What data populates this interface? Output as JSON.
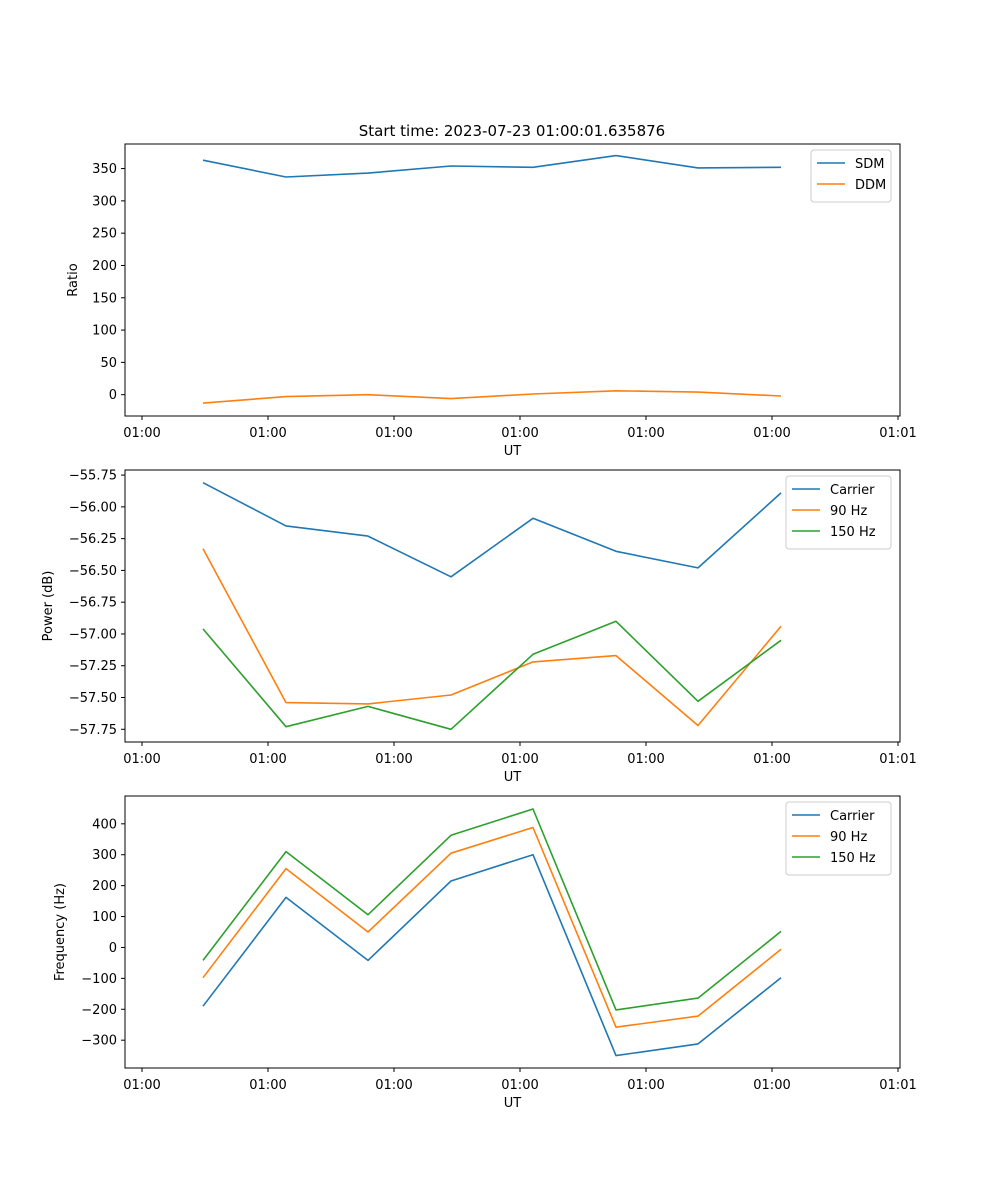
{
  "figure": {
    "title": "Start time: 2023-07-23 01:00:01.635876"
  },
  "chart_data": [
    {
      "type": "line",
      "title": "Start time: 2023-07-23 01:00:01.635876",
      "xlabel": "UT",
      "ylabel": "Ratio",
      "x_tick_labels": [
        "01:00",
        "01:00",
        "01:00",
        "01:00",
        "01:00",
        "01:00",
        "01:01"
      ],
      "y_ticks": [
        0,
        50,
        100,
        150,
        200,
        250,
        300,
        350
      ],
      "ylim": [
        -33,
        388
      ],
      "x_points": 8,
      "legend": "top-right",
      "series": [
        {
          "name": "SDM",
          "color": "#1f77b4",
          "values": [
            363,
            337,
            343,
            354,
            352,
            370,
            351,
            352
          ]
        },
        {
          "name": "DDM",
          "color": "#ff7f0e",
          "values": [
            -13,
            -3,
            0,
            -6,
            1,
            6,
            4,
            -2
          ]
        }
      ]
    },
    {
      "type": "line",
      "title": "",
      "xlabel": "UT",
      "ylabel": "Power (dB)",
      "x_tick_labels": [
        "01:00",
        "01:00",
        "01:00",
        "01:00",
        "01:00",
        "01:00",
        "01:01"
      ],
      "y_ticks": [
        -57.75,
        -57.5,
        -57.25,
        -57.0,
        -56.75,
        -56.5,
        -56.25,
        -56.0,
        -55.75
      ],
      "y_tick_labels": [
        "−57.75",
        "−57.50",
        "−57.25",
        "−57.00",
        "−56.75",
        "−56.50",
        "−56.25",
        "−56.00",
        "−55.75"
      ],
      "ylim": [
        -57.85,
        -55.71
      ],
      "x_points": 8,
      "legend": "top-right",
      "series": [
        {
          "name": "Carrier",
          "color": "#1f77b4",
          "values": [
            -55.81,
            -56.15,
            -56.23,
            -56.55,
            -56.09,
            -56.35,
            -56.48,
            -55.89
          ]
        },
        {
          "name": "90 Hz",
          "color": "#ff7f0e",
          "values": [
            -56.33,
            -57.54,
            -57.55,
            -57.48,
            -57.22,
            -57.17,
            -57.72,
            -56.94
          ]
        },
        {
          "name": "150 Hz",
          "color": "#2ca02c",
          "values": [
            -56.96,
            -57.73,
            -57.57,
            -57.75,
            -57.16,
            -56.9,
            -57.53,
            -57.05
          ]
        }
      ]
    },
    {
      "type": "line",
      "title": "",
      "xlabel": "UT",
      "ylabel": "Frequency (Hz)",
      "x_tick_labels": [
        "01:00",
        "01:00",
        "01:00",
        "01:00",
        "01:00",
        "01:00",
        "01:01"
      ],
      "y_ticks": [
        -300,
        -200,
        -100,
        0,
        100,
        200,
        300,
        400
      ],
      "y_tick_labels": [
        "−300",
        "−200",
        "−100",
        "0",
        "100",
        "200",
        "300",
        "400"
      ],
      "ylim": [
        -390,
        490
      ],
      "x_points": 8,
      "legend": "top-right",
      "series": [
        {
          "name": "Carrier",
          "color": "#1f77b4",
          "values": [
            -190,
            162,
            -42,
            215,
            300,
            -350,
            -312,
            -98
          ]
        },
        {
          "name": "90 Hz",
          "color": "#ff7f0e",
          "values": [
            -98,
            255,
            50,
            305,
            388,
            -258,
            -222,
            -6
          ]
        },
        {
          "name": "150 Hz",
          "color": "#2ca02c",
          "values": [
            -42,
            310,
            106,
            363,
            448,
            -202,
            -164,
            52
          ]
        }
      ]
    }
  ]
}
